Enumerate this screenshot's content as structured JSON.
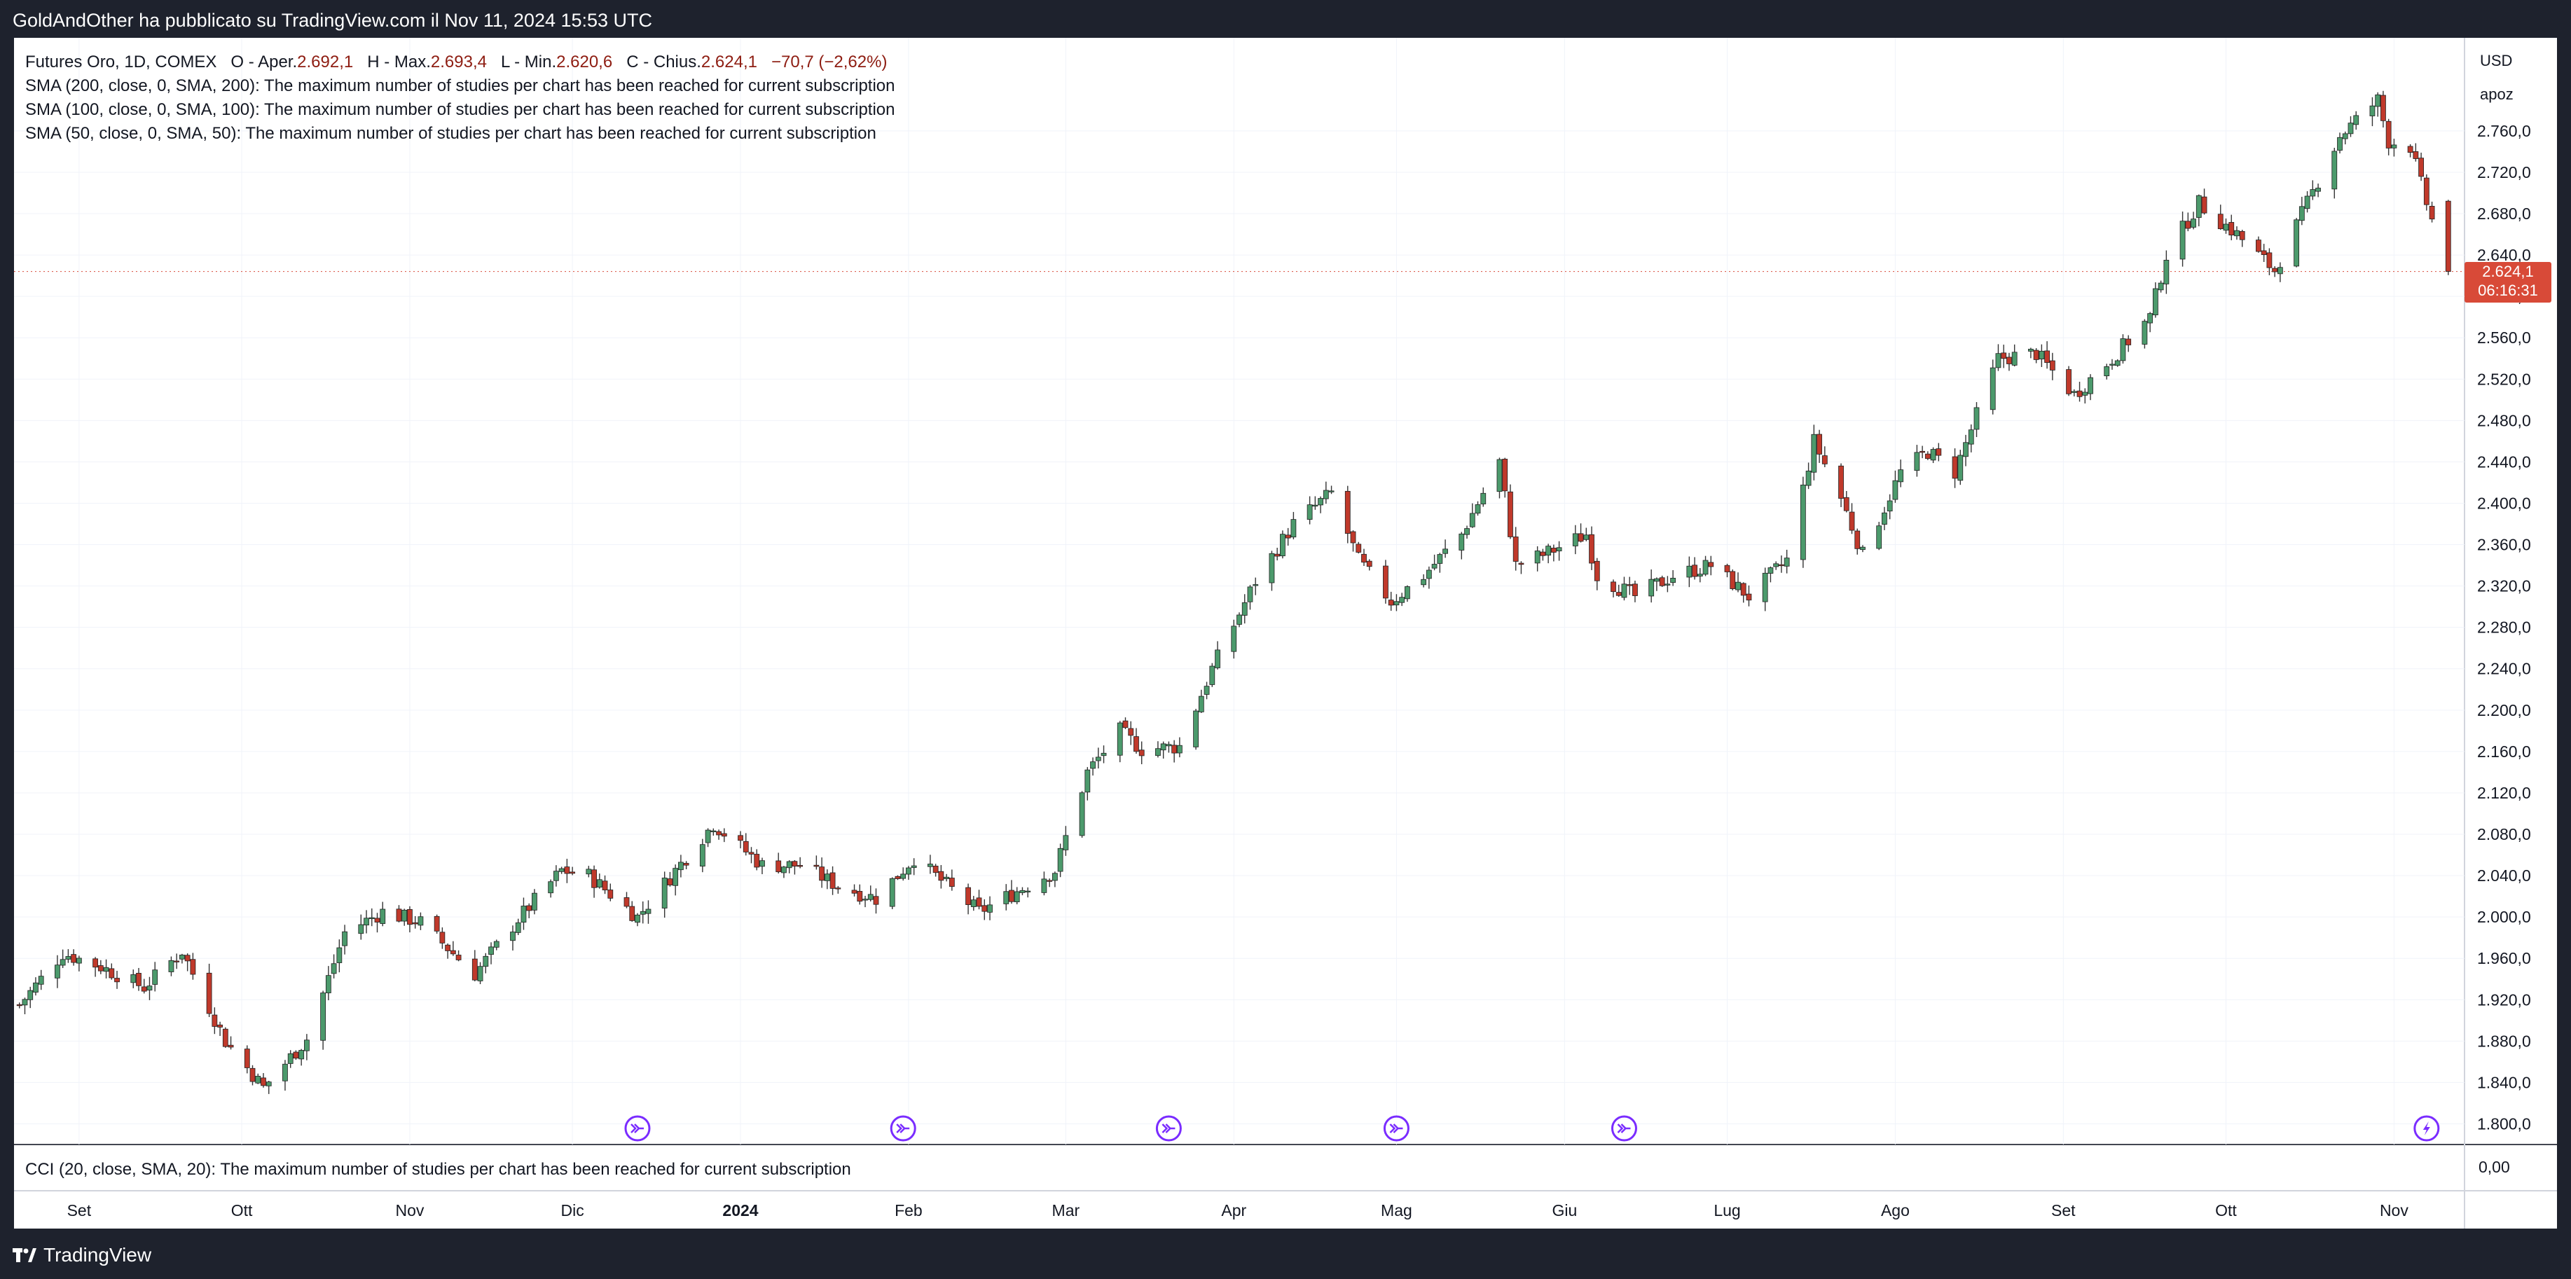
{
  "header": {
    "attribution": "GoldAndOther ha pubblicato su TradingView.com il Nov 11, 2024 15:53 UTC"
  },
  "legend": {
    "symbol": "Futures Oro, 1D, COMEX",
    "open_label": "O - Aper.",
    "open_value": "2.692,1",
    "high_label": "H - Max.",
    "high_value": "2.693,4",
    "low_label": "L - Min.",
    "low_value": "2.620,6",
    "close_label": "C - Chius.",
    "close_value": "2.624,1",
    "change": "−70,7 (−2,62%)",
    "studies": [
      "SMA (200, close, 0, SMA, 200): The maximum number of studies per chart has been reached for current subscription",
      "SMA (100, close, 0, SMA, 100): The maximum number of studies per chart has been reached for current subscription",
      "SMA (50, close, 0, SMA, 50): The maximum number of studies per chart has been reached for current subscription"
    ]
  },
  "cci_label": "CCI (20, close, SMA, 20): The maximum number of studies per chart has been reached for current subscription",
  "price_axis": {
    "currency": "USD",
    "mode": "apoz",
    "cci_zero": "0,00"
  },
  "last_price": {
    "value": "2.624,1",
    "countdown": "06:16:31"
  },
  "footer": {
    "brand": "TradingView"
  },
  "colors": {
    "up": "#4c9a6c",
    "down": "#c0392b",
    "grid": "#f0f3fa",
    "events": "#7a2cff"
  },
  "chart_data": {
    "type": "candlestick",
    "title": "Futures Oro, 1D, COMEX",
    "ylim": [
      1780,
      2850
    ],
    "y_ticks": [
      1800,
      1840,
      1880,
      1920,
      1960,
      2000,
      2040,
      2080,
      2120,
      2160,
      2200,
      2240,
      2280,
      2320,
      2360,
      2400,
      2440,
      2480,
      2520,
      2560,
      2600,
      2640,
      2680,
      2720,
      2760
    ],
    "y_tick_labels": [
      "1.800,0",
      "1.840,0",
      "1.880,0",
      "1.920,0",
      "1.960,0",
      "2.000,0",
      "2.040,0",
      "2.080,0",
      "2.120,0",
      "2.160,0",
      "2.200,0",
      "2.240,0",
      "2.280,0",
      "2.320,0",
      "2.360,0",
      "2.400,0",
      "2.440,0",
      "2.480,0",
      "2.520,0",
      "2.560,0",
      "2.600,0",
      "2.640,0",
      "2.680,0",
      "2.720,0",
      "2.760,0"
    ],
    "x_labels": [
      {
        "label": "Set",
        "date": "2023-09-01",
        "bold": false
      },
      {
        "label": "Ott",
        "date": "2023-10-01",
        "bold": false
      },
      {
        "label": "Nov",
        "date": "2023-11-01",
        "bold": false
      },
      {
        "label": "Dic",
        "date": "2023-12-01",
        "bold": false
      },
      {
        "label": "2024",
        "date": "2024-01-01",
        "bold": true
      },
      {
        "label": "Feb",
        "date": "2024-02-01",
        "bold": false
      },
      {
        "label": "Mar",
        "date": "2024-03-01",
        "bold": false
      },
      {
        "label": "Apr",
        "date": "2024-04-01",
        "bold": false
      },
      {
        "label": "Mag",
        "date": "2024-05-01",
        "bold": false
      },
      {
        "label": "Giu",
        "date": "2024-06-01",
        "bold": false
      },
      {
        "label": "Lug",
        "date": "2024-07-01",
        "bold": false
      },
      {
        "label": "Ago",
        "date": "2024-08-01",
        "bold": false
      },
      {
        "label": "Set",
        "date": "2024-09-01",
        "bold": false
      },
      {
        "label": "Ott",
        "date": "2024-10-01",
        "bold": false
      },
      {
        "label": "Nov",
        "date": "2024-11-01",
        "bold": false
      }
    ],
    "events": [
      {
        "date": "2023-12-13",
        "type": "economic"
      },
      {
        "date": "2024-01-31",
        "type": "economic"
      },
      {
        "date": "2024-03-20",
        "type": "economic"
      },
      {
        "date": "2024-05-01",
        "type": "economic"
      },
      {
        "date": "2024-06-12",
        "type": "economic"
      },
      {
        "date": "2024-11-07",
        "type": "flash"
      }
    ],
    "close_path": [
      [
        "2023-08-21",
        1915
      ],
      [
        "2023-08-29",
        1965
      ],
      [
        "2023-09-05",
        1952
      ],
      [
        "2023-09-13",
        1932
      ],
      [
        "2023-09-20",
        1967
      ],
      [
        "2023-09-28",
        1880
      ],
      [
        "2023-10-05",
        1835
      ],
      [
        "2023-10-13",
        1882
      ],
      [
        "2023-10-20",
        1985
      ],
      [
        "2023-10-27",
        2005
      ],
      [
        "2023-11-03",
        1995
      ],
      [
        "2023-11-13",
        1945
      ],
      [
        "2023-11-21",
        1998
      ],
      [
        "2023-11-29",
        2045
      ],
      [
        "2023-12-04",
        2040
      ],
      [
        "2023-12-13",
        2000
      ],
      [
        "2023-12-27",
        2090
      ],
      [
        "2024-01-05",
        2050
      ],
      [
        "2024-01-12",
        2050
      ],
      [
        "2024-01-19",
        2030
      ],
      [
        "2024-01-26",
        2018
      ],
      [
        "2024-02-02",
        2057
      ],
      [
        "2024-02-14",
        2005
      ],
      [
        "2024-02-28",
        2045
      ],
      [
        "2024-03-05",
        2140
      ],
      [
        "2024-03-11",
        2180
      ],
      [
        "2024-03-15",
        2162
      ],
      [
        "2024-03-22",
        2165
      ],
      [
        "2024-03-28",
        2240
      ],
      [
        "2024-04-05",
        2325
      ],
      [
        "2024-04-12",
        2380
      ],
      [
        "2024-04-19",
        2410
      ],
      [
        "2024-04-24",
        2345
      ],
      [
        "2024-04-30",
        2305
      ],
      [
        "2024-05-06",
        2330
      ],
      [
        "2024-05-13",
        2370
      ],
      [
        "2024-05-20",
        2440
      ],
      [
        "2024-05-23",
        2340
      ],
      [
        "2024-05-28",
        2350
      ],
      [
        "2024-06-05",
        2370
      ],
      [
        "2024-06-07",
        2330
      ],
      [
        "2024-06-14",
        2310
      ],
      [
        "2024-06-21",
        2330
      ],
      [
        "2024-06-28",
        2340
      ],
      [
        "2024-07-05",
        2310
      ],
      [
        "2024-07-12",
        2345
      ],
      [
        "2024-07-17",
        2460
      ],
      [
        "2024-07-22",
        2405
      ],
      [
        "2024-07-26",
        2350
      ],
      [
        "2024-08-02",
        2430
      ],
      [
        "2024-08-07",
        2450
      ],
      [
        "2024-08-12",
        2430
      ],
      [
        "2024-08-20",
        2540
      ],
      [
        "2024-08-27",
        2545
      ],
      [
        "2024-09-03",
        2505
      ],
      [
        "2024-09-10",
        2540
      ],
      [
        "2024-09-17",
        2580
      ],
      [
        "2024-09-20",
        2640
      ],
      [
        "2024-09-26",
        2690
      ],
      [
        "2024-10-03",
        2660
      ],
      [
        "2024-10-10",
        2625
      ],
      [
        "2024-10-16",
        2690
      ],
      [
        "2024-10-22",
        2755
      ],
      [
        "2024-10-29",
        2790
      ],
      [
        "2024-10-31",
        2750
      ],
      [
        "2024-11-04",
        2745
      ],
      [
        "2024-11-07",
        2690
      ],
      [
        "2024-11-11",
        2624
      ]
    ],
    "last_candle": {
      "date": "2024-11-11",
      "open": 2692.1,
      "high": 2693.4,
      "low": 2620.6,
      "close": 2624.1
    }
  }
}
